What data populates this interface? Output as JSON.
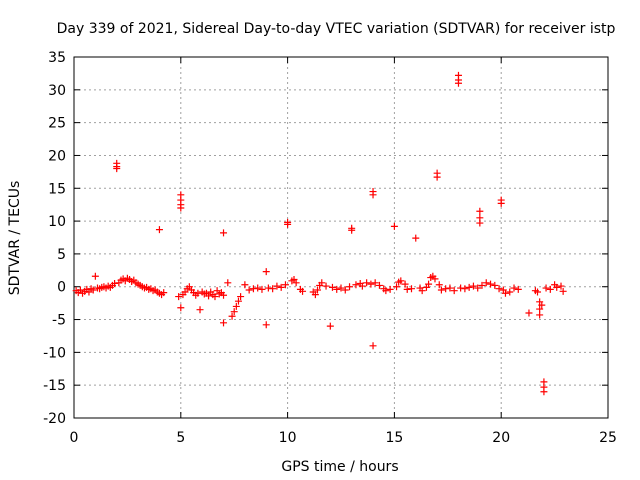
{
  "chart_data": {
    "type": "scatter",
    "title": "Day 339 of 2021, Sidereal Day-to-day VTEC variation (SDTVAR) for receiver istp",
    "xlabel": "GPS time / hours",
    "ylabel": "SDTVAR / TECUs",
    "xlim": [
      0,
      25
    ],
    "ylim": [
      -20,
      35
    ],
    "x_ticks": [
      0,
      5,
      10,
      15,
      20,
      25
    ],
    "y_ticks": [
      -20,
      -15,
      -10,
      -5,
      0,
      5,
      10,
      15,
      20,
      25,
      30,
      35
    ],
    "grid": true,
    "marker": "+",
    "marker_color": "#ff0000",
    "series": [
      {
        "name": "SDTVAR",
        "points": [
          [
            0.1,
            -0.6
          ],
          [
            0.2,
            -0.9
          ],
          [
            0.3,
            -0.5
          ],
          [
            0.4,
            -1.0
          ],
          [
            0.5,
            -0.7
          ],
          [
            0.6,
            -0.4
          ],
          [
            0.7,
            -0.8
          ],
          [
            0.8,
            -0.3
          ],
          [
            0.9,
            -0.5
          ],
          [
            1.0,
            1.6
          ],
          [
            1.1,
            -0.2
          ],
          [
            1.2,
            -0.3
          ],
          [
            1.3,
            -0.1
          ],
          [
            1.4,
            0.0
          ],
          [
            1.5,
            -0.2
          ],
          [
            1.6,
            0.1
          ],
          [
            1.7,
            -0.1
          ],
          [
            1.8,
            0.2
          ],
          [
            1.9,
            0.5
          ],
          [
            2.0,
            18.8
          ],
          [
            2.0,
            18.3
          ],
          [
            2.0,
            18.0
          ],
          [
            2.1,
            0.6
          ],
          [
            2.2,
            1.0
          ],
          [
            2.3,
            1.2
          ],
          [
            2.4,
            0.9
          ],
          [
            2.5,
            1.3
          ],
          [
            2.6,
            1.1
          ],
          [
            2.7,
            0.8
          ],
          [
            2.8,
            1.0
          ],
          [
            2.9,
            0.6
          ],
          [
            3.0,
            0.4
          ],
          [
            3.1,
            0.2
          ],
          [
            3.2,
            0.0
          ],
          [
            3.3,
            -0.2
          ],
          [
            3.4,
            -0.1
          ],
          [
            3.5,
            -0.4
          ],
          [
            3.6,
            -0.3
          ],
          [
            3.7,
            -0.6
          ],
          [
            3.8,
            -0.5
          ],
          [
            3.9,
            -0.8
          ],
          [
            4.0,
            8.7
          ],
          [
            4.0,
            -1.0
          ],
          [
            4.1,
            -1.2
          ],
          [
            4.2,
            -0.9
          ],
          [
            4.9,
            -1.5
          ],
          [
            5.0,
            14.0
          ],
          [
            5.0,
            13.2
          ],
          [
            5.0,
            12.5
          ],
          [
            5.0,
            12.0
          ],
          [
            5.0,
            -3.2
          ],
          [
            5.1,
            -1.2
          ],
          [
            5.2,
            -0.8
          ],
          [
            5.3,
            -0.3
          ],
          [
            5.4,
            0.0
          ],
          [
            5.5,
            -0.5
          ],
          [
            5.6,
            -0.9
          ],
          [
            5.7,
            -1.3
          ],
          [
            5.8,
            -1.0
          ],
          [
            5.9,
            -3.5
          ],
          [
            6.0,
            -0.8
          ],
          [
            6.1,
            -1.1
          ],
          [
            6.2,
            -1.0
          ],
          [
            6.3,
            -1.4
          ],
          [
            6.4,
            -0.8
          ],
          [
            6.5,
            -1.2
          ],
          [
            6.6,
            -1.5
          ],
          [
            6.7,
            -0.6
          ],
          [
            6.8,
            -1.1
          ],
          [
            6.9,
            -0.9
          ],
          [
            7.0,
            8.2
          ],
          [
            7.0,
            -5.5
          ],
          [
            7.0,
            -1.3
          ],
          [
            7.2,
            0.6
          ],
          [
            7.4,
            -4.5
          ],
          [
            7.5,
            -3.8
          ],
          [
            7.6,
            -3.0
          ],
          [
            7.7,
            -2.2
          ],
          [
            7.8,
            -1.5
          ],
          [
            8.0,
            0.3
          ],
          [
            8.2,
            -0.5
          ],
          [
            8.4,
            -0.3
          ],
          [
            8.6,
            -0.2
          ],
          [
            8.8,
            -0.4
          ],
          [
            9.0,
            2.3
          ],
          [
            9.0,
            -5.8
          ],
          [
            9.1,
            -0.2
          ],
          [
            9.3,
            -0.3
          ],
          [
            9.5,
            0.1
          ],
          [
            9.7,
            -0.1
          ],
          [
            9.9,
            0.3
          ],
          [
            10.0,
            9.8
          ],
          [
            10.0,
            9.5
          ],
          [
            10.2,
            0.9
          ],
          [
            10.3,
            1.1
          ],
          [
            10.4,
            0.6
          ],
          [
            10.6,
            -0.4
          ],
          [
            10.7,
            -0.7
          ],
          [
            11.2,
            -0.8
          ],
          [
            11.3,
            -1.2
          ],
          [
            11.4,
            -0.5
          ],
          [
            11.5,
            0.2
          ],
          [
            11.6,
            0.6
          ],
          [
            11.8,
            0.1
          ],
          [
            12.0,
            -6.0
          ],
          [
            12.1,
            -0.1
          ],
          [
            12.3,
            -0.4
          ],
          [
            12.5,
            -0.2
          ],
          [
            12.7,
            -0.5
          ],
          [
            12.9,
            0.0
          ],
          [
            13.0,
            8.9
          ],
          [
            13.0,
            8.6
          ],
          [
            13.2,
            0.3
          ],
          [
            13.4,
            0.5
          ],
          [
            13.5,
            0.1
          ],
          [
            13.7,
            0.6
          ],
          [
            13.9,
            0.4
          ],
          [
            14.0,
            14.5
          ],
          [
            14.0,
            14.0
          ],
          [
            14.0,
            -9.0
          ],
          [
            14.1,
            0.6
          ],
          [
            14.3,
            0.2
          ],
          [
            14.5,
            -0.3
          ],
          [
            14.6,
            -0.6
          ],
          [
            14.8,
            -0.4
          ],
          [
            15.0,
            9.2
          ],
          [
            15.1,
            0.0
          ],
          [
            15.2,
            0.7
          ],
          [
            15.3,
            0.9
          ],
          [
            15.5,
            0.4
          ],
          [
            15.6,
            -0.4
          ],
          [
            15.8,
            -0.3
          ],
          [
            16.0,
            7.4
          ],
          [
            16.2,
            -0.2
          ],
          [
            16.3,
            -0.6
          ],
          [
            16.5,
            -0.1
          ],
          [
            16.6,
            0.4
          ],
          [
            16.7,
            1.4
          ],
          [
            16.8,
            1.6
          ],
          [
            16.9,
            1.2
          ],
          [
            17.0,
            17.3
          ],
          [
            17.0,
            16.7
          ],
          [
            17.1,
            0.3
          ],
          [
            17.2,
            -0.5
          ],
          [
            17.4,
            -0.3
          ],
          [
            17.6,
            -0.2
          ],
          [
            17.8,
            -0.6
          ],
          [
            18.0,
            32.2
          ],
          [
            18.0,
            31.5
          ],
          [
            18.0,
            31.0
          ],
          [
            18.1,
            -0.2
          ],
          [
            18.3,
            -0.3
          ],
          [
            18.5,
            -0.1
          ],
          [
            18.7,
            0.1
          ],
          [
            18.9,
            -0.2
          ],
          [
            19.0,
            11.5
          ],
          [
            19.0,
            10.5
          ],
          [
            19.0,
            9.7
          ],
          [
            19.1,
            0.2
          ],
          [
            19.3,
            0.6
          ],
          [
            19.5,
            0.4
          ],
          [
            19.7,
            0.2
          ],
          [
            19.9,
            -0.3
          ],
          [
            20.0,
            13.2
          ],
          [
            20.0,
            12.7
          ],
          [
            20.1,
            -0.5
          ],
          [
            20.2,
            -1.0
          ],
          [
            20.4,
            -0.8
          ],
          [
            20.6,
            -0.2
          ],
          [
            20.8,
            -0.4
          ],
          [
            21.3,
            -4.0
          ],
          [
            21.6,
            -0.6
          ],
          [
            21.7,
            -0.8
          ],
          [
            21.8,
            -2.3
          ],
          [
            21.8,
            -3.4
          ],
          [
            21.8,
            -4.3
          ],
          [
            21.9,
            -2.8
          ],
          [
            22.0,
            -14.5
          ],
          [
            22.0,
            -15.3
          ],
          [
            22.0,
            -16.0
          ],
          [
            22.1,
            -0.2
          ],
          [
            22.3,
            -0.4
          ],
          [
            22.5,
            0.3
          ],
          [
            22.6,
            -0.1
          ],
          [
            22.8,
            0.1
          ],
          [
            22.9,
            -0.7
          ]
        ]
      }
    ]
  }
}
